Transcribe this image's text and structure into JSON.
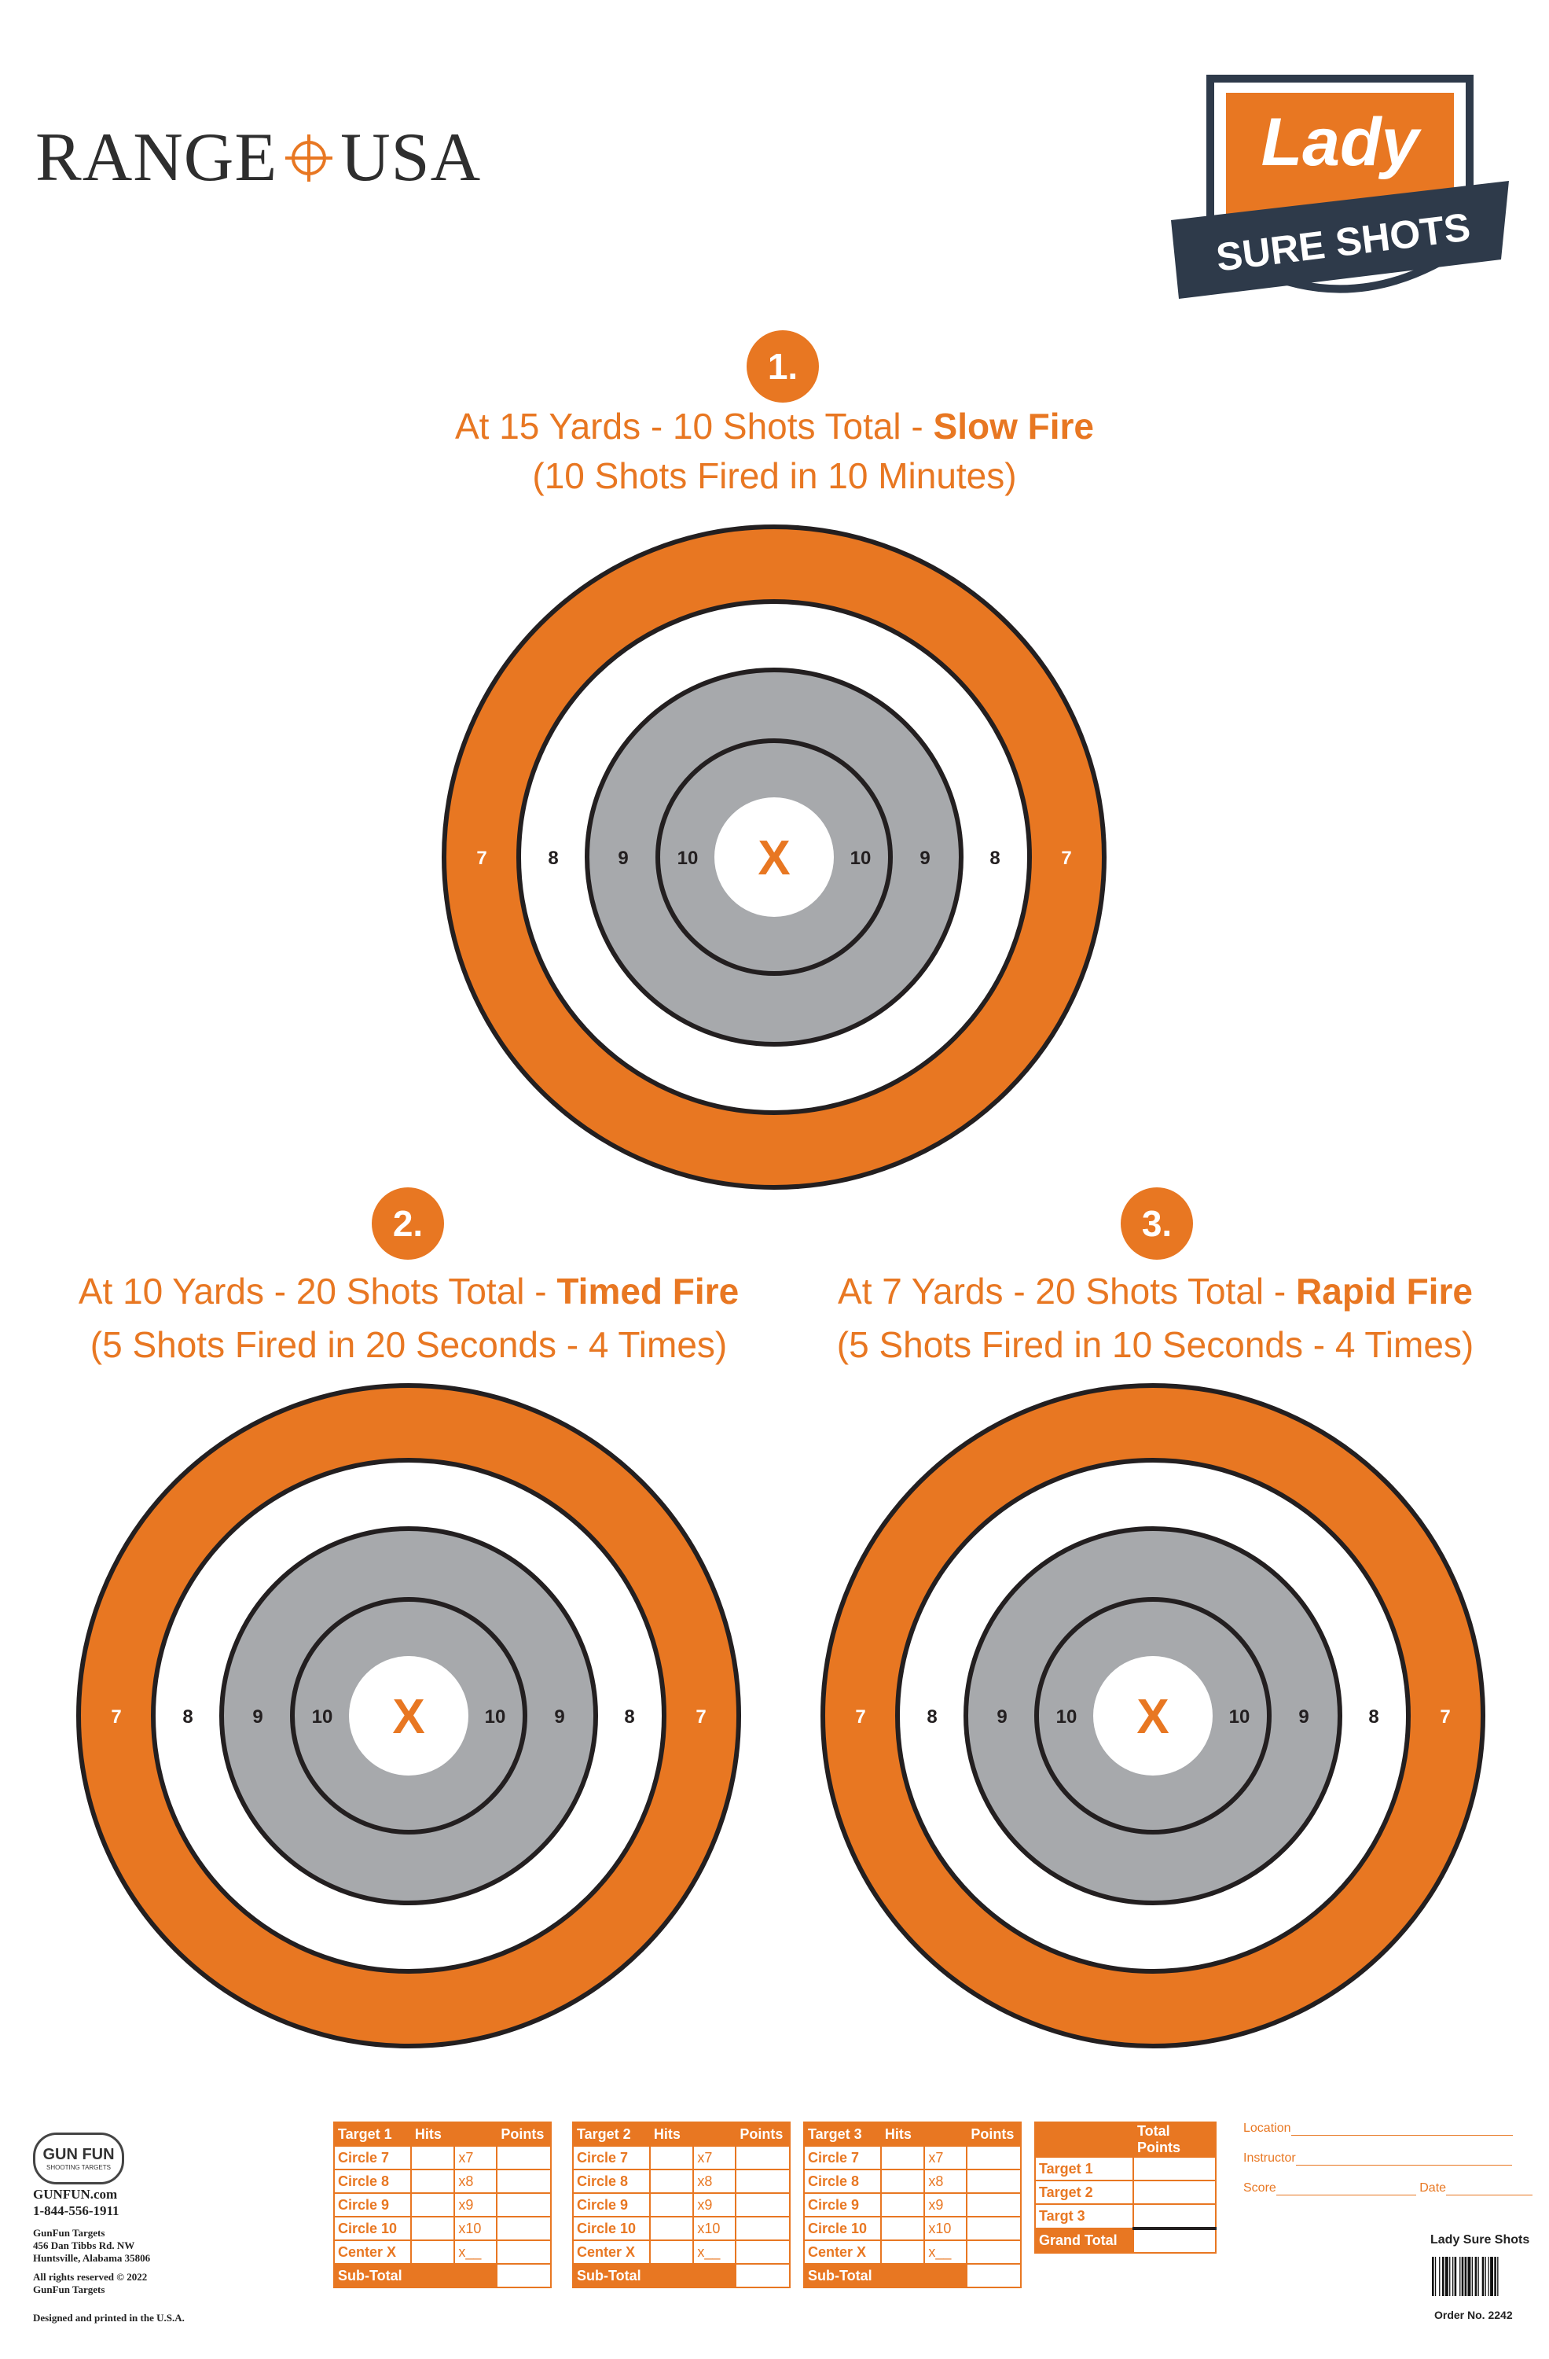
{
  "brand": {
    "left": "RANGE",
    "right": "USA"
  },
  "badge": {
    "script": "Lady",
    "ribbon": "SURE SHOTS"
  },
  "targets": [
    {
      "number": "1.",
      "line1_regular": "At 15 Yards - 10 Shots Total - ",
      "line1_bold": "Slow Fire",
      "line2": "(10 Shots Fired in 10 Minutes)"
    },
    {
      "number": "2.",
      "line1_regular": "At 10 Yards - 20 Shots Total - ",
      "line1_bold": "Timed Fire",
      "line2": "(5 Shots Fired in 20 Seconds - 4 Times)"
    },
    {
      "number": "3.",
      "line1_regular": "At 7 Yards - 20 Shots Total - ",
      "line1_bold": "Rapid Fire",
      "line2": "(5 Shots Fired in 10 Seconds - 4 Times)"
    }
  ],
  "rings": {
    "r7": "7",
    "r8": "8",
    "r9": "9",
    "r10": "10",
    "center": "X"
  },
  "colors": {
    "accent": "#e87722",
    "gray": "#a7a9ac",
    "ink": "#231f20"
  },
  "score_tables": [
    {
      "title": "Target 1",
      "hits": "Hits",
      "points": "Points",
      "rows": [
        {
          "label": "Circle 7",
          "mult": "x7"
        },
        {
          "label": "Circle 8",
          "mult": "x8"
        },
        {
          "label": "Circle 9",
          "mult": "x9"
        },
        {
          "label": "Circle 10",
          "mult": "x10"
        },
        {
          "label": "Center X",
          "mult": "x__"
        }
      ],
      "subtotal": "Sub-Total"
    },
    {
      "title": "Target 2",
      "hits": "Hits",
      "points": "Points",
      "rows": [
        {
          "label": "Circle 7",
          "mult": "x7"
        },
        {
          "label": "Circle 8",
          "mult": "x8"
        },
        {
          "label": "Circle 9",
          "mult": "x9"
        },
        {
          "label": "Circle 10",
          "mult": "x10"
        },
        {
          "label": "Center X",
          "mult": "x__"
        }
      ],
      "subtotal": "Sub-Total"
    },
    {
      "title": "Target 3",
      "hits": "Hits",
      "points": "Points",
      "rows": [
        {
          "label": "Circle 7",
          "mult": "x7"
        },
        {
          "label": "Circle 8",
          "mult": "x8"
        },
        {
          "label": "Circle 9",
          "mult": "x9"
        },
        {
          "label": "Circle 10",
          "mult": "x10"
        },
        {
          "label": "Center X",
          "mult": "x__"
        }
      ],
      "subtotal": "Sub-Total"
    }
  ],
  "totals": {
    "header": "Total Points",
    "rows": [
      "Target 1",
      "Target 2",
      "Targt 3"
    ],
    "grand": "Grand Total"
  },
  "form": {
    "location": "Location",
    "instructor": "Instructor",
    "score": "Score",
    "date": "Date"
  },
  "publisher": {
    "logo": "GUN FUN",
    "logo_sub": "SHOOTING TARGETS",
    "site": "GUNFUN.com",
    "phone": "1-844-556-1911",
    "name": "GunFun Targets",
    "street": "456 Dan Tibbs Rd. NW",
    "city": "Huntsville, Alabama 35806",
    "rights": "All rights reserved © 2022",
    "rights2": "GunFun Targets",
    "made": "Designed and printed in the U.S.A."
  },
  "product": {
    "title": "Lady Sure Shots",
    "order": "Order No. 2242"
  }
}
